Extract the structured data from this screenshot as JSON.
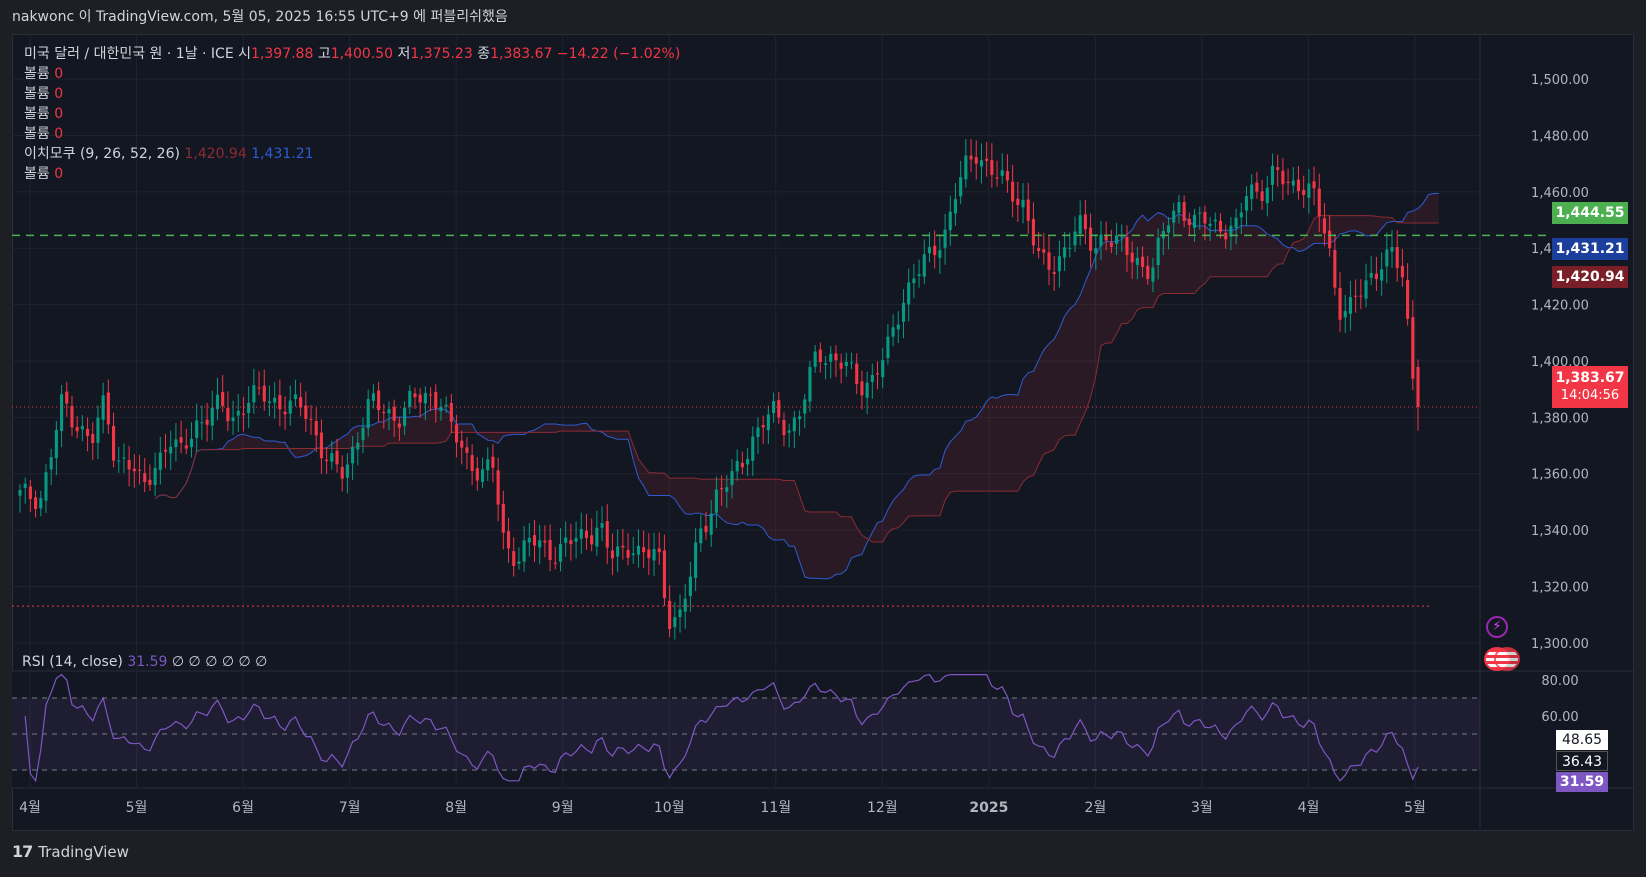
{
  "topbar": {
    "text": "nakwonc 이 TradingView.com, 5월 05, 2025 16:55 UTC+9 에 퍼블리쉬했음"
  },
  "legend": {
    "symbol": "미국 달러 / 대한민국 원 · 1날 · ICE",
    "open_label": "시",
    "open": "1,397.88",
    "high_label": "고",
    "high": "1,400.50",
    "low_label": "저",
    "low": "1,375.23",
    "close_label": "종",
    "close": "1,383.67",
    "change": "−14.22 (−1.02%)",
    "volume_label": "볼륨",
    "volume_value": "0",
    "ichimoku_label": "이치모쿠 (9, 26, 52, 26)",
    "ichimoku_v1": "1,420.94",
    "ichimoku_v2": "1,431.21",
    "rsi_label": "RSI (14, close)",
    "rsi_value": "31.59",
    "rsi_extra": "∅ ∅ ∅ ∅ ∅ ∅"
  },
  "price_tags": {
    "green": "1,444.55",
    "blue": "1,431.21",
    "dark_red": "1,420.94",
    "last": "1,383.67",
    "countdown": "14:04:56",
    "rsi_a": "48.65",
    "rsi_b": "36.43",
    "rsi_c": "31.59"
  },
  "footer": {
    "brand": "TradingView"
  },
  "colors": {
    "up": "#089981",
    "down": "#f23645",
    "kijun": "#8b2b33",
    "tenkan": "#2e5bd1",
    "rsi": "#7e57c2",
    "hline": "#4caf50"
  },
  "chart_data": {
    "type": "candlestick",
    "title": "미국 달러 / 대한민국 원 · 1날 · ICE",
    "price_axis": {
      "ticks": [
        1300,
        1320,
        1340,
        1360,
        1380,
        1400,
        1420,
        1440,
        1460,
        1480,
        1500
      ],
      "labels": [
        "1,300.00",
        "1,320.00",
        "1,340.00",
        "1,360.00",
        "1,380.00",
        "1,400.00",
        "1,420.00",
        "1,440.00",
        "1,460.00",
        "1,480.00",
        "1,500.00"
      ],
      "ylim": [
        1290,
        1516
      ]
    },
    "time_axis": {
      "labels": [
        "4월",
        "5월",
        "6월",
        "7월",
        "8월",
        "9월",
        "10월",
        "11월",
        "12월",
        "2025",
        "2월",
        "3월",
        "4월",
        "5월"
      ]
    },
    "horizontal_lines": [
      {
        "price": 1444.55,
        "style": "dashed",
        "color": "#4caf50"
      },
      {
        "price": 1313,
        "style": "dotted",
        "color": "#f23645"
      }
    ],
    "close_path": [
      [
        0,
        1352
      ],
      [
        4,
        1352
      ],
      [
        8,
        1385
      ],
      [
        11,
        1377
      ],
      [
        14,
        1372
      ],
      [
        16,
        1386
      ],
      [
        18,
        1364
      ],
      [
        20,
        1366
      ],
      [
        23,
        1354
      ],
      [
        25,
        1362
      ],
      [
        28,
        1372
      ],
      [
        30,
        1366
      ],
      [
        33,
        1378
      ],
      [
        35,
        1380
      ],
      [
        38,
        1384
      ],
      [
        40,
        1380
      ],
      [
        43,
        1386
      ],
      [
        46,
        1388
      ],
      [
        48,
        1386
      ],
      [
        51,
        1383
      ],
      [
        53,
        1384
      ],
      [
        55,
        1378
      ],
      [
        58,
        1363
      ],
      [
        61,
        1360
      ],
      [
        64,
        1377
      ],
      [
        66,
        1385
      ],
      [
        68,
        1383
      ],
      [
        71,
        1380
      ],
      [
        74,
        1386
      ],
      [
        77,
        1388
      ],
      [
        79,
        1387
      ],
      [
        81,
        1376
      ],
      [
        84,
        1366
      ],
      [
        87,
        1360
      ],
      [
        89,
        1362
      ],
      [
        91,
        1336
      ],
      [
        94,
        1330
      ],
      [
        96,
        1336
      ],
      [
        99,
        1334
      ],
      [
        101,
        1332
      ],
      [
        104,
        1336
      ],
      [
        106,
        1338
      ],
      [
        109,
        1342
      ],
      [
        111,
        1330
      ],
      [
        113,
        1332
      ],
      [
        115,
        1336
      ],
      [
        117,
        1330
      ],
      [
        120,
        1332
      ],
      [
        122,
        1310
      ],
      [
        124,
        1308
      ],
      [
        126,
        1322
      ],
      [
        128,
        1340
      ],
      [
        131,
        1352
      ],
      [
        134,
        1358
      ],
      [
        137,
        1370
      ],
      [
        140,
        1378
      ],
      [
        142,
        1382
      ],
      [
        145,
        1376
      ],
      [
        147,
        1382
      ],
      [
        150,
        1404
      ],
      [
        152,
        1402
      ],
      [
        155,
        1398
      ],
      [
        158,
        1392
      ],
      [
        160,
        1393
      ],
      [
        163,
        1402
      ],
      [
        166,
        1422
      ],
      [
        168,
        1430
      ],
      [
        171,
        1436
      ],
      [
        174,
        1446
      ],
      [
        176,
        1460
      ],
      [
        178,
        1468
      ],
      [
        180,
        1474
      ],
      [
        183,
        1468
      ],
      [
        186,
        1460
      ],
      [
        189,
        1456
      ],
      [
        192,
        1434
      ],
      [
        194,
        1432
      ],
      [
        197,
        1442
      ],
      [
        199,
        1448
      ],
      [
        202,
        1440
      ],
      [
        204,
        1446
      ],
      [
        207,
        1440
      ],
      [
        210,
        1436
      ],
      [
        213,
        1432
      ],
      [
        216,
        1450
      ],
      [
        218,
        1456
      ],
      [
        221,
        1448
      ],
      [
        223,
        1450
      ],
      [
        226,
        1448
      ],
      [
        229,
        1446
      ],
      [
        231,
        1462
      ],
      [
        233,
        1460
      ],
      [
        236,
        1466
      ],
      [
        239,
        1462
      ],
      [
        241,
        1464
      ],
      [
        243,
        1460
      ],
      [
        246,
        1442
      ],
      [
        248,
        1420
      ],
      [
        250,
        1418
      ],
      [
        253,
        1426
      ],
      [
        256,
        1436
      ],
      [
        258,
        1438
      ],
      [
        260,
        1430
      ],
      [
        262,
        1396
      ],
      [
        263,
        1384
      ]
    ],
    "rsi": {
      "ylim": [
        20,
        85
      ],
      "ticks": [
        60,
        80
      ],
      "bands": [
        30,
        50,
        70
      ],
      "last": 31.59
    }
  }
}
